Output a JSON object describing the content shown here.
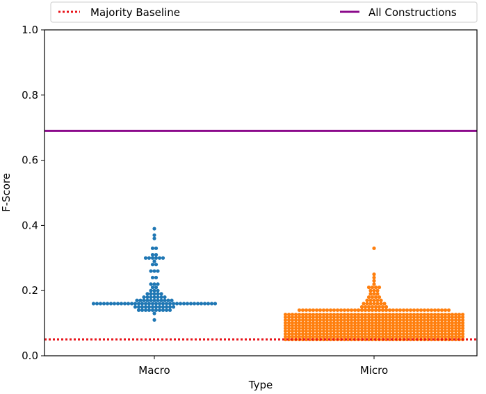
{
  "chart_data": {
    "type": "scatter",
    "subtype": "swarm",
    "title": "",
    "xlabel": "Type",
    "ylabel": "F-Score",
    "categories": [
      "Macro",
      "Micro"
    ],
    "ylim": [
      0.0,
      1.0
    ],
    "yticks": [
      "0.0",
      "0.2",
      "0.4",
      "0.6",
      "0.8",
      "1.0"
    ],
    "grid": false,
    "legend_position": "top",
    "reference_lines": [
      {
        "name": "Majority Baseline",
        "y": 0.05,
        "style": "dotted",
        "color": "#e8141b"
      },
      {
        "name": "All Constructions",
        "y": 0.69,
        "style": "solid",
        "color": "#8b0a8b"
      }
    ],
    "series": [
      {
        "category": "Macro",
        "color": "#1f77b4",
        "values": [
          0.39,
          0.37,
          0.36,
          0.33,
          0.33,
          0.31,
          0.31,
          0.3,
          0.3,
          0.3,
          0.3,
          0.3,
          0.3,
          0.29,
          0.28,
          0.28,
          0.26,
          0.26,
          0.26,
          0.24,
          0.24,
          0.22,
          0.22,
          0.22,
          0.21,
          0.21,
          0.2,
          0.2,
          0.2,
          0.19,
          0.19,
          0.19,
          0.19,
          0.19,
          0.18,
          0.18,
          0.18,
          0.18,
          0.18,
          0.18,
          0.18,
          0.17,
          0.17,
          0.17,
          0.17,
          0.17,
          0.17,
          0.17,
          0.17,
          0.17,
          0.17,
          0.17,
          0.16,
          0.16,
          0.16,
          0.16,
          0.16,
          0.16,
          0.16,
          0.16,
          0.16,
          0.16,
          0.16,
          0.16,
          0.16,
          0.16,
          0.16,
          0.16,
          0.16,
          0.16,
          0.16,
          0.16,
          0.16,
          0.16,
          0.16,
          0.16,
          0.16,
          0.16,
          0.16,
          0.16,
          0.16,
          0.16,
          0.16,
          0.16,
          0.16,
          0.16,
          0.16,
          0.16,
          0.15,
          0.15,
          0.15,
          0.15,
          0.15,
          0.15,
          0.15,
          0.15,
          0.15,
          0.15,
          0.15,
          0.15,
          0.14,
          0.14,
          0.14,
          0.14,
          0.14,
          0.14,
          0.14,
          0.14,
          0.14,
          0.14,
          0.13,
          0.11
        ]
      },
      {
        "category": "Micro",
        "color": "#ff7f0e",
        "values": [
          0.33,
          0.25,
          0.24,
          0.23,
          0.22,
          0.21,
          0.21,
          0.21,
          0.21,
          0.2,
          0.2,
          0.2,
          0.19,
          0.19,
          0.19,
          0.18,
          0.18,
          0.18,
          0.18,
          0.17,
          0.17,
          0.17,
          0.17,
          0.17,
          0.16,
          0.16,
          0.16,
          0.16,
          0.16,
          0.16,
          0.16,
          0.15,
          0.15,
          0.15,
          0.15,
          0.15,
          0.15,
          0.15,
          0.15,
          0.14,
          0.14,
          0.14,
          0.14,
          0.14,
          0.14,
          0.14,
          0.14,
          0.14,
          0.14
        ],
        "dense_band": {
          "min": 0.05,
          "max": 0.13,
          "shoulder_max": 0.14
        }
      }
    ]
  }
}
